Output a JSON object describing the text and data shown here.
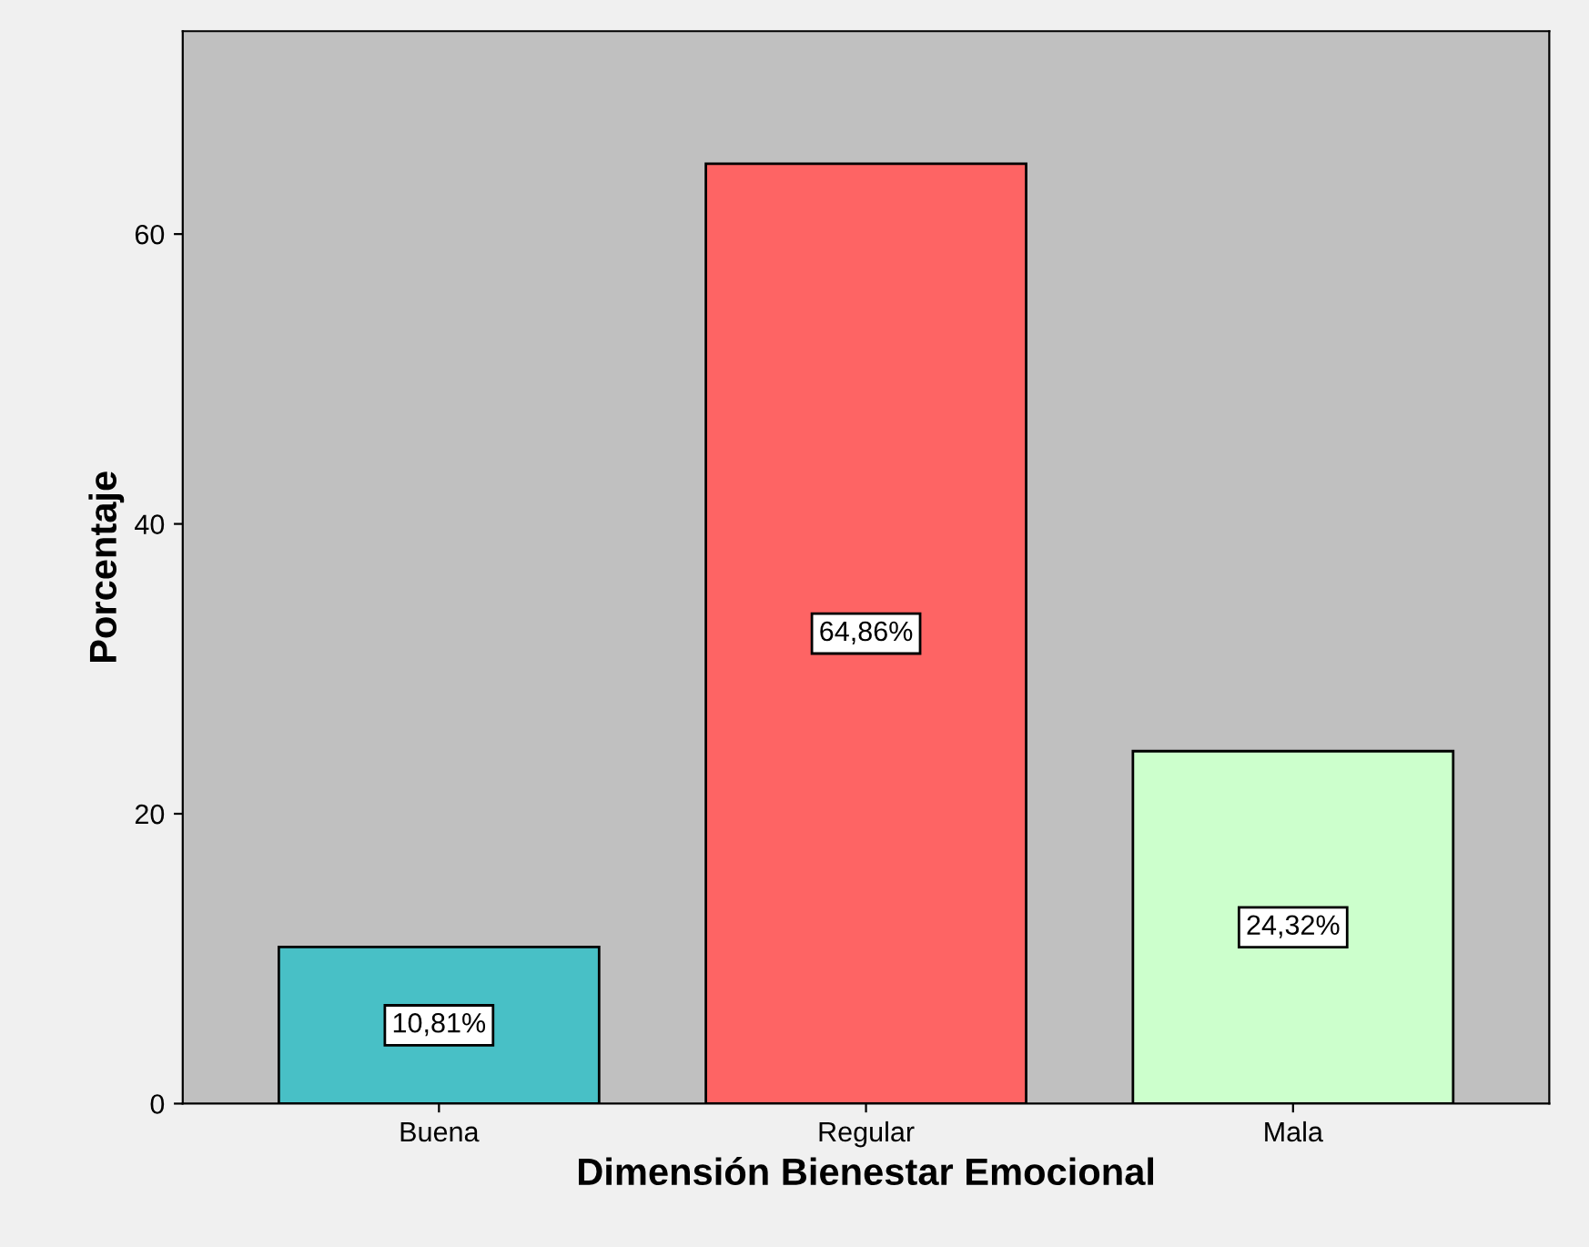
{
  "chart_data": {
    "type": "bar",
    "xlabel": "Dimensión Bienestar Emocional",
    "ylabel": "Porcentaje",
    "categories": [
      "Buena",
      "Regular",
      "Mala"
    ],
    "values": [
      10.81,
      64.86,
      24.32
    ],
    "colors": [
      "#48c0c6",
      "#fe6464",
      "#ccffcc"
    ],
    "value_labels": [
      "10,81%",
      "64,86%",
      "24,32%"
    ],
    "ylim": [
      0,
      74
    ],
    "yticks": [
      0,
      20,
      40,
      60
    ],
    "grid": false,
    "legend": false
  }
}
